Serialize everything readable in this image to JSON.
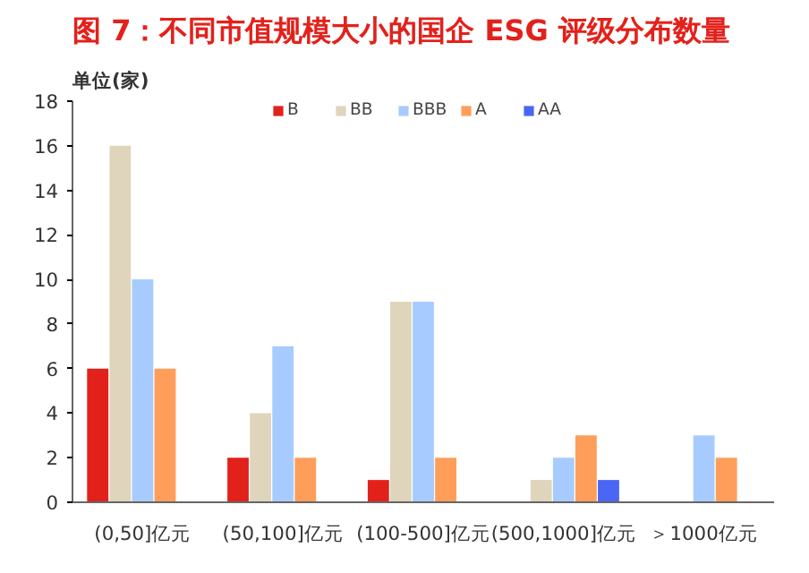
{
  "chart_data": {
    "type": "bar",
    "title": "图 7：不同市值规模大小的国企 ESG 评级分布数量",
    "ylabel": "单位(家)",
    "categories": [
      "(0,50]亿元",
      "(50,100]亿元",
      "(100-500]亿元",
      "(500,1000]亿元",
      "＞1000亿元"
    ],
    "series": [
      {
        "name": "B",
        "color": "#e3211b",
        "values": [
          6,
          2,
          1,
          0,
          0
        ]
      },
      {
        "name": "BB",
        "color": "#dfd5bc",
        "values": [
          16,
          4,
          9,
          1,
          0
        ]
      },
      {
        "name": "BBB",
        "color": "#a8cbff",
        "values": [
          10,
          7,
          9,
          2,
          3
        ]
      },
      {
        "name": "A",
        "color": "#ff9e5a",
        "values": [
          6,
          2,
          2,
          3,
          2
        ]
      },
      {
        "name": "AA",
        "color": "#4a66f5",
        "values": [
          0,
          0,
          0,
          1,
          0
        ]
      }
    ],
    "ylim": [
      0,
      18
    ],
    "yticks": [
      0,
      2,
      4,
      6,
      8,
      10,
      12,
      14,
      16,
      18
    ],
    "grid": false,
    "legend": "top"
  }
}
